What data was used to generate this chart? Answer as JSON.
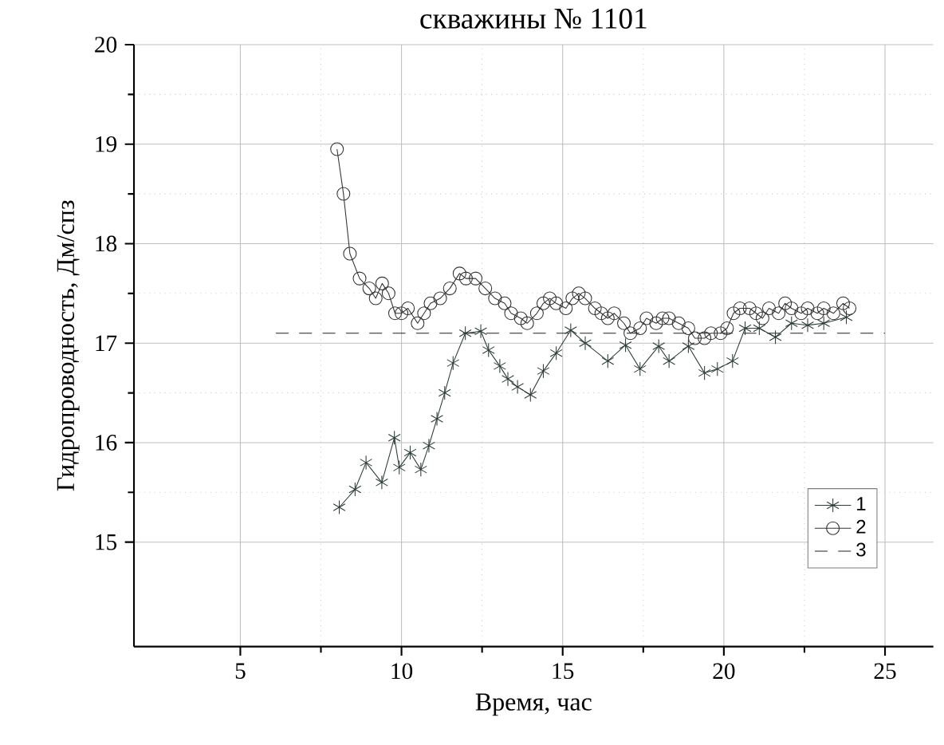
{
  "chart_data": {
    "type": "line",
    "title": "скважины № 1101",
    "xlabel": "Время, час",
    "ylabel": "Гидропроводность, Дм/спз",
    "xlim": [
      1.7,
      26.5
    ],
    "ylim": [
      13.95,
      20
    ],
    "xticks": [
      5,
      10,
      15,
      20,
      25
    ],
    "yticks": [
      15,
      16,
      17,
      18,
      19,
      20
    ],
    "grid": true,
    "legend": "bottom right",
    "series": [
      {
        "name": "1",
        "color": "#2f3d38",
        "marker": "cross",
        "line_style": "solid",
        "x": [
          8.07,
          8.56,
          8.9,
          9.39,
          9.78,
          9.93,
          10.27,
          10.6,
          10.85,
          11.1,
          11.34,
          11.6,
          11.98,
          12.46,
          12.7,
          13.05,
          13.3,
          13.6,
          14.0,
          14.4,
          14.8,
          15.25,
          15.7,
          16.4,
          16.95,
          17.4,
          17.98,
          18.3,
          18.9,
          19.4,
          19.8,
          20.27,
          20.66,
          21.1,
          21.6,
          22.1,
          22.6,
          23.1,
          23.8
        ],
        "values": [
          15.35,
          15.53,
          15.8,
          15.6,
          16.05,
          15.75,
          15.9,
          15.73,
          15.97,
          16.24,
          16.5,
          16.8,
          17.1,
          17.12,
          16.93,
          16.77,
          16.64,
          16.56,
          16.48,
          16.72,
          16.9,
          17.13,
          17.0,
          16.82,
          16.98,
          16.74,
          16.97,
          16.82,
          16.97,
          16.7,
          16.74,
          16.82,
          17.15,
          17.15,
          17.06,
          17.2,
          17.18,
          17.2,
          17.26
        ]
      },
      {
        "name": "2",
        "color": "#333333",
        "marker": "circle",
        "line_style": "solid",
        "x": [
          8.0,
          8.2,
          8.4,
          8.7,
          9.0,
          9.2,
          9.4,
          9.6,
          9.8,
          10.0,
          10.2,
          10.5,
          10.7,
          10.9,
          11.2,
          11.5,
          11.8,
          12.0,
          12.3,
          12.6,
          12.9,
          13.2,
          13.4,
          13.7,
          13.9,
          14.2,
          14.4,
          14.6,
          14.8,
          15.1,
          15.3,
          15.5,
          15.7,
          16.0,
          16.2,
          16.4,
          16.6,
          16.9,
          17.1,
          17.4,
          17.6,
          17.9,
          18.1,
          18.3,
          18.6,
          18.9,
          19.1,
          19.4,
          19.6,
          19.9,
          20.1,
          20.3,
          20.5,
          20.8,
          21.0,
          21.2,
          21.4,
          21.7,
          21.9,
          22.1,
          22.4,
          22.6,
          22.9,
          23.1,
          23.4,
          23.7,
          23.9
        ],
        "values": [
          18.95,
          18.5,
          17.9,
          17.65,
          17.55,
          17.45,
          17.6,
          17.5,
          17.3,
          17.3,
          17.35,
          17.2,
          17.3,
          17.4,
          17.45,
          17.55,
          17.7,
          17.65,
          17.65,
          17.55,
          17.45,
          17.4,
          17.3,
          17.25,
          17.2,
          17.3,
          17.4,
          17.45,
          17.4,
          17.35,
          17.45,
          17.5,
          17.45,
          17.35,
          17.3,
          17.25,
          17.3,
          17.2,
          17.1,
          17.15,
          17.25,
          17.2,
          17.25,
          17.25,
          17.2,
          17.15,
          17.05,
          17.05,
          17.1,
          17.1,
          17.15,
          17.3,
          17.35,
          17.35,
          17.3,
          17.25,
          17.35,
          17.3,
          17.4,
          17.35,
          17.3,
          17.35,
          17.3,
          17.35,
          17.3,
          17.4,
          17.35
        ]
      },
      {
        "name": "3",
        "color": "#222222",
        "marker": "none",
        "line_style": "dashed",
        "x": [
          6.1,
          25.0
        ],
        "values": [
          17.1,
          17.1
        ]
      }
    ]
  }
}
